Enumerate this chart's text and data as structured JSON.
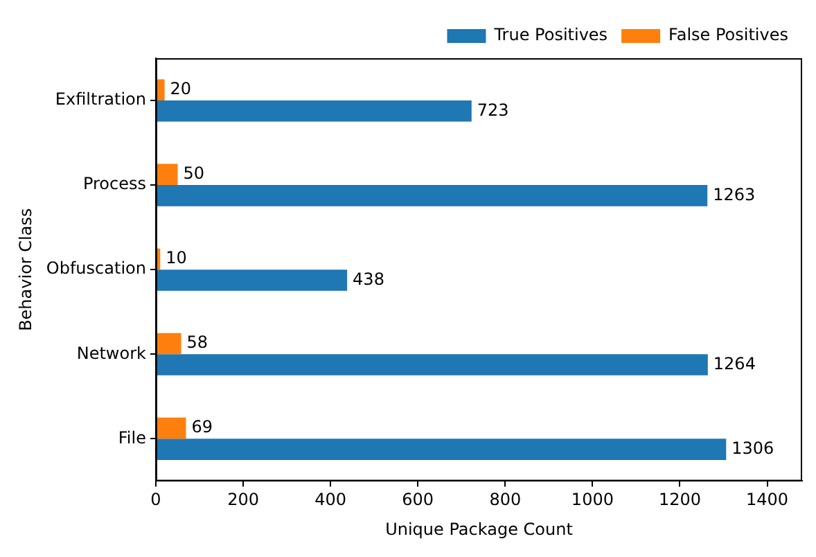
{
  "chart_data": {
    "type": "bar",
    "orientation": "horizontal",
    "xlabel": "Unique Package Count",
    "ylabel": "Behavior Class",
    "categories": [
      "Exfiltration",
      "Process",
      "Obfuscation",
      "Network",
      "File"
    ],
    "series": [
      {
        "name": "True Positives",
        "color": "#1f77b4",
        "values": [
          723,
          1263,
          438,
          1264,
          1306
        ]
      },
      {
        "name": "False Positives",
        "color": "#ff7f0e",
        "values": [
          20,
          50,
          10,
          58,
          69
        ]
      }
    ],
    "xlim": [
      0,
      1480
    ],
    "xticks": [
      0,
      200,
      400,
      600,
      800,
      1000,
      1200,
      1400
    ],
    "grid": false,
    "legend": "top right",
    "data_labels": true
  }
}
